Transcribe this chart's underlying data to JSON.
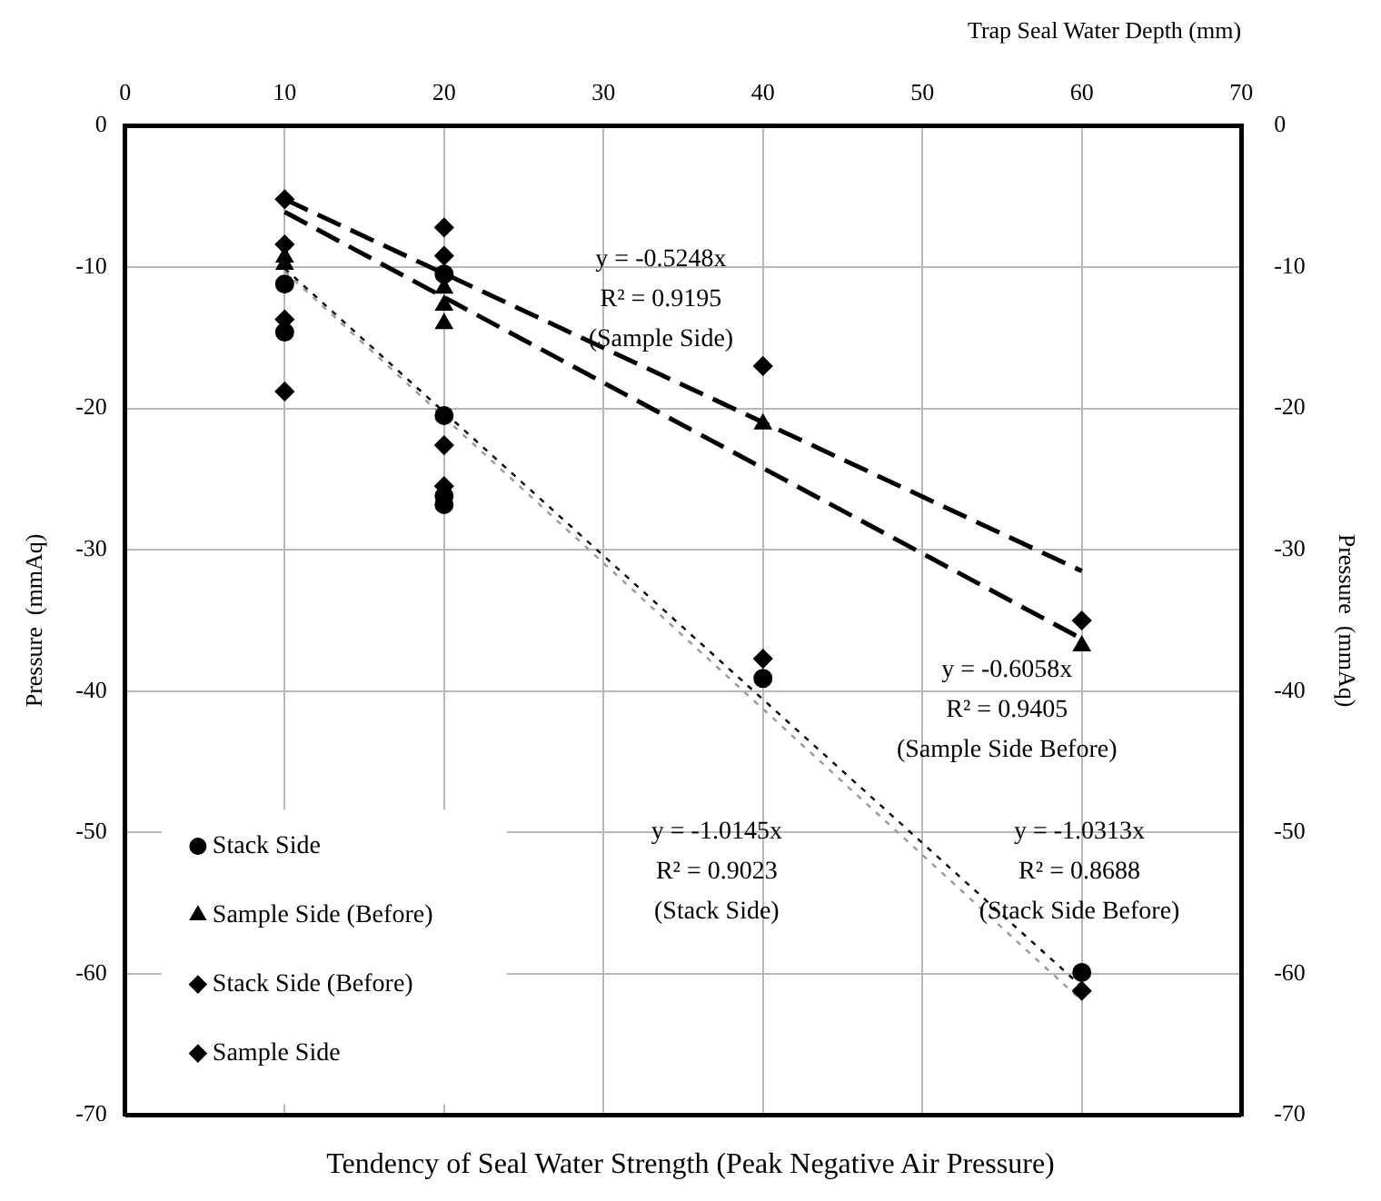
{
  "chart_data": {
    "type": "scatter",
    "title": "Tendency of Seal Water Strength (Peak Negative Air Pressure)",
    "xlabel": "Trap Seal Water Depth (mm)",
    "ylabel": "Pressure  (mmAq)",
    "y2label": "Pressure  (mmAq)",
    "xlim": [
      0,
      70
    ],
    "xticks": [
      0,
      10,
      20,
      30,
      40,
      50,
      60,
      70
    ],
    "ylim": [
      -70,
      0
    ],
    "yticks": [
      -70,
      -60,
      -50,
      -40,
      -30,
      -20,
      -10,
      0
    ],
    "y2lim": [
      -70,
      0
    ],
    "y2ticks": [
      -70,
      -60,
      -50,
      -40,
      -30,
      -20,
      -10,
      0
    ],
    "grid": true,
    "legend": "bottom left",
    "series": [
      {
        "name": "Stack Side",
        "marker": "circle",
        "color": "#000000",
        "x": [
          10,
          10,
          20,
          20,
          20,
          20,
          40,
          60
        ],
        "values": [
          -11.2,
          -14.6,
          -10.5,
          -20.5,
          -26.2,
          -26.8,
          -39.1,
          -59.9
        ]
      },
      {
        "name": "Sample Side (Before)",
        "marker": "triangle",
        "color": "#000000",
        "x": [
          10,
          10,
          20,
          20,
          20,
          40,
          60
        ],
        "values": [
          -9.3,
          -9.8,
          -11.5,
          -12.7,
          -14.0,
          -21.1,
          -36.8
        ]
      },
      {
        "name": "Stack Side (Before)",
        "marker": "diamond",
        "color": "#000000",
        "x": [
          10,
          10,
          20,
          20,
          40,
          60
        ],
        "values": [
          -13.7,
          -18.8,
          -22.6,
          -25.5,
          -37.7,
          -61.2
        ]
      },
      {
        "name": "Sample Side",
        "marker": "diamond",
        "color": "#000000",
        "x": [
          10,
          10,
          20,
          20,
          40,
          60
        ],
        "values": [
          -5.2,
          -8.4,
          -7.2,
          -9.2,
          -17.0,
          -35.0
        ]
      },
      {
        "type": "line",
        "line_style": "dashed",
        "color": "#000000",
        "x": [
          10,
          60
        ],
        "values": [
          -5.2,
          -31.5
        ]
      },
      {
        "type": "line",
        "line_style": "dashed",
        "color": "#000000",
        "x": [
          10,
          60
        ],
        "values": [
          -6.1,
          -36.3
        ]
      },
      {
        "type": "line",
        "line_style": "dotted",
        "color": "#000000",
        "x": [
          10,
          60
        ],
        "values": [
          -10.1,
          -60.9
        ]
      },
      {
        "type": "line",
        "line_style": "dotted",
        "color": "#999999",
        "x": [
          10,
          60
        ],
        "values": [
          -10.3,
          -61.9
        ]
      }
    ],
    "annotations": [
      "y = -0.5248x\nR² = 0.9195\n(Sample Side)",
      "y = -0.6058x\nR² = 0.9405\n(Sample Side Before)",
      "y = -1.0145x\nR² = 0.9023\n(Stack Side)",
      "y = -1.0313x\nR² = 0.8688\n(Stack Side Before)"
    ]
  }
}
